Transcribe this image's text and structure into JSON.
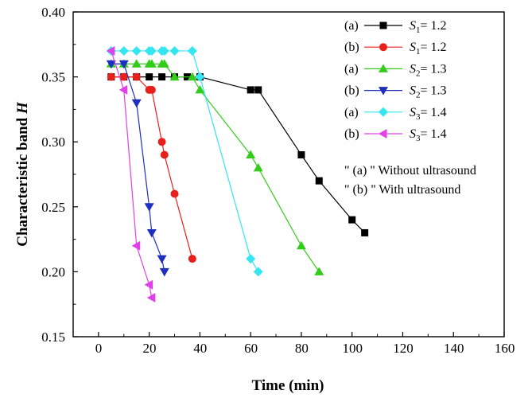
{
  "chart_data": {
    "type": "line",
    "xlabel": "Time (min)",
    "ylabel_text": "Characteristic band ",
    "ylabel_var": "H",
    "xlim": [
      -10,
      160
    ],
    "ylim": [
      0.15,
      0.4
    ],
    "xticks": [
      0,
      20,
      40,
      60,
      80,
      100,
      120,
      140,
      160
    ],
    "xtick_labels": [
      "0",
      "20",
      "40",
      "60",
      "80",
      "100",
      "120",
      "140",
      "160"
    ],
    "yticks": [
      0.15,
      0.2,
      0.25,
      0.3,
      0.35,
      0.4
    ],
    "ytick_labels": [
      "0.15",
      "0.20",
      "0.25",
      "0.30",
      "0.35",
      "0.40"
    ],
    "grid": false,
    "legend_position": "top-right",
    "series": [
      {
        "id": "s1a",
        "prefix": "(a)",
        "var": "S",
        "sub": "1",
        "eq": "= 1.2",
        "color": "#000000",
        "marker": "square",
        "x": [
          5,
          10,
          15,
          20,
          25,
          30,
          35,
          40,
          60,
          63,
          80,
          87,
          100,
          105
        ],
        "y": [
          0.35,
          0.35,
          0.35,
          0.35,
          0.35,
          0.35,
          0.35,
          0.35,
          0.34,
          0.34,
          0.29,
          0.27,
          0.24,
          0.23
        ]
      },
      {
        "id": "s1b",
        "prefix": "(b)",
        "var": "S",
        "sub": "1",
        "eq": "= 1.2",
        "color": "#e8201c",
        "marker": "circle",
        "x": [
          5,
          10,
          15,
          20,
          21,
          25,
          26,
          30,
          37
        ],
        "y": [
          0.35,
          0.35,
          0.35,
          0.34,
          0.34,
          0.3,
          0.29,
          0.26,
          0.21
        ]
      },
      {
        "id": "s2a",
        "prefix": "(a)",
        "var": "S",
        "sub": "2",
        "eq": "= 1.3",
        "color": "#33cc1a",
        "marker": "triangle-up",
        "x": [
          5,
          10,
          15,
          20,
          21,
          25,
          26,
          30,
          37,
          40,
          60,
          63,
          80,
          87
        ],
        "y": [
          0.36,
          0.36,
          0.36,
          0.36,
          0.36,
          0.36,
          0.36,
          0.35,
          0.35,
          0.34,
          0.29,
          0.28,
          0.22,
          0.2
        ]
      },
      {
        "id": "s2b",
        "prefix": "(b)",
        "var": "S",
        "sub": "2",
        "eq": "= 1.3",
        "color": "#1e2fc0",
        "marker": "triangle-down",
        "x": [
          5,
          10,
          15,
          20,
          21,
          25,
          26
        ],
        "y": [
          0.36,
          0.36,
          0.33,
          0.25,
          0.23,
          0.21,
          0.2
        ]
      },
      {
        "id": "s3a",
        "prefix": "(a)",
        "var": "S",
        "sub": "3",
        "eq": "= 1.4",
        "color": "#33e6f0",
        "marker": "diamond",
        "x": [
          5,
          10,
          15,
          20,
          21,
          25,
          26,
          30,
          37,
          40,
          60,
          63
        ],
        "y": [
          0.37,
          0.37,
          0.37,
          0.37,
          0.37,
          0.37,
          0.37,
          0.37,
          0.37,
          0.35,
          0.21,
          0.2
        ]
      },
      {
        "id": "s3b",
        "prefix": "(b)",
        "var": "S",
        "sub": "3",
        "eq": "= 1.4",
        "color": "#e040e8",
        "marker": "triangle-left",
        "x": [
          5,
          10,
          15,
          20,
          21
        ],
        "y": [
          0.37,
          0.34,
          0.22,
          0.19,
          0.18
        ]
      }
    ],
    "notes": [
      "\" (a) \" Without ultrasound",
      "\" (b) \" With ultrasound"
    ]
  }
}
